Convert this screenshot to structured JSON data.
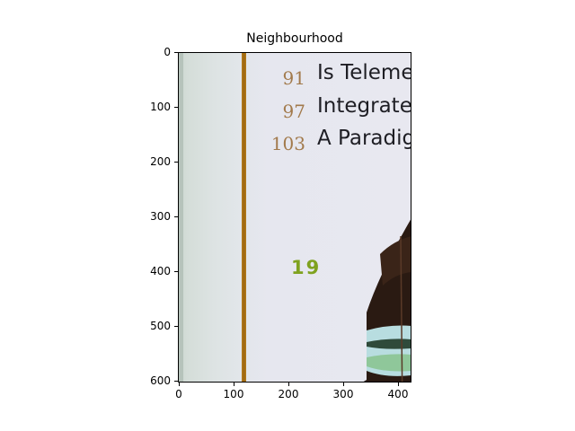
{
  "title": "Neighbourhood",
  "image": {
    "toc_entries": [
      {
        "number": "91",
        "title": "Is Teleme"
      },
      {
        "number": "97",
        "title": "Integrate"
      },
      {
        "number": "103",
        "title": "A Paradig"
      }
    ],
    "page_number": "19"
  },
  "axes": {
    "y_ticks": [
      "0",
      "100",
      "200",
      "300",
      "400",
      "500",
      "600"
    ],
    "x_ticks": [
      "0",
      "100",
      "200",
      "300",
      "400"
    ]
  },
  "colors": {
    "rule": "#a86f16",
    "toc_number": "#a27a4c",
    "toc_title": "#1e1e24",
    "page_number": "#7fa21f"
  }
}
